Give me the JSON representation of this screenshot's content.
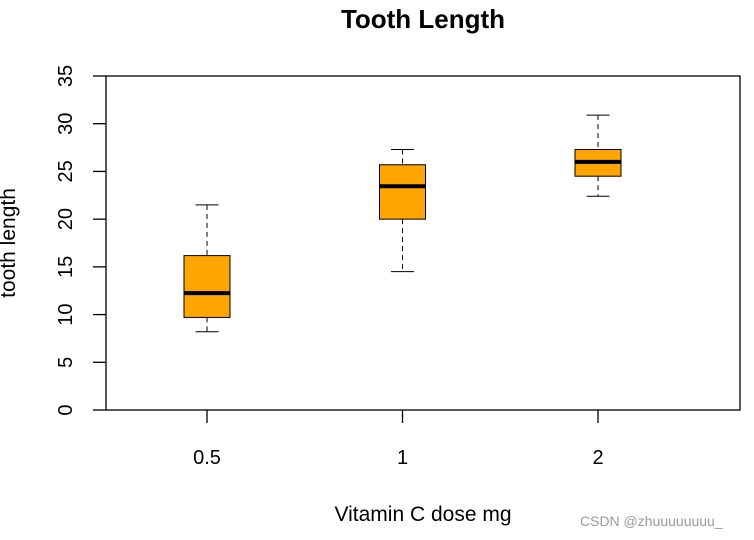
{
  "chart_data": {
    "type": "boxplot",
    "title": "Tooth Length",
    "xlabel": "Vitamin C dose mg",
    "ylabel": "tooth length",
    "categories": [
      "0.5",
      "1",
      "2"
    ],
    "boxes": [
      {
        "min": 8.2,
        "q1": 9.7,
        "median": 12.25,
        "q3": 16.18,
        "max": 21.5
      },
      {
        "min": 14.5,
        "q1": 20.0,
        "median": 23.45,
        "q3": 25.7,
        "max": 27.3
      },
      {
        "min": 22.4,
        "q1": 24.5,
        "median": 26.0,
        "q3": 27.3,
        "max": 30.9
      }
    ],
    "ylim": [
      0,
      35
    ],
    "yticks": [
      0,
      5,
      10,
      15,
      20,
      25,
      30,
      35
    ],
    "grid": false,
    "box_color": "#FFA500"
  },
  "watermark": "CSDN @zhuuuuuuuu_"
}
